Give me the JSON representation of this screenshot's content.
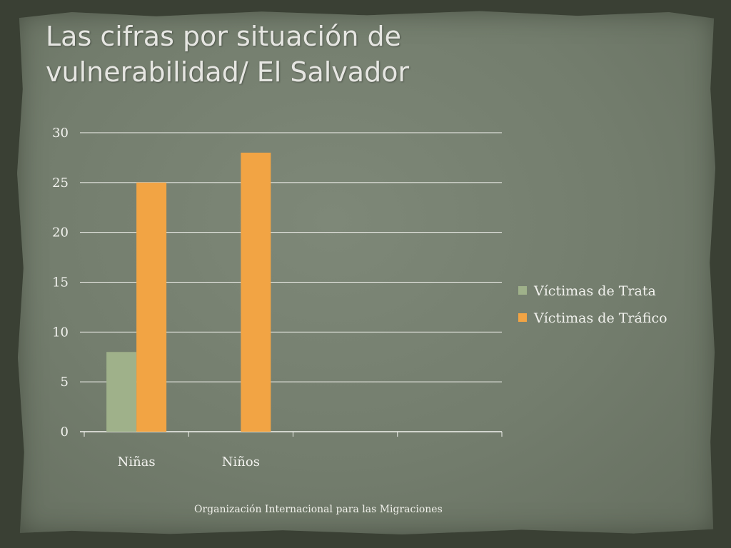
{
  "slide": {
    "title": "Las cifras por situación de vulnerabilidad/ El Salvador",
    "footer": "Organización Internacional para las Migraciones"
  },
  "colors": {
    "background": "#737d6d",
    "gridline": "#f2f2ee",
    "text": "#f2f2ee"
  },
  "chart_data": {
    "type": "bar",
    "title": "",
    "xlabel": "",
    "ylabel": "",
    "categories": [
      "Niñas",
      "Niños",
      "",
      ""
    ],
    "series": [
      {
        "name": "Víctimas de Trata",
        "color": "#9fb18a",
        "values": [
          8,
          0,
          null,
          null
        ]
      },
      {
        "name": "Víctimas de Tráfico",
        "color": "#f2a444",
        "values": [
          25,
          28,
          null,
          null
        ]
      }
    ],
    "ylim": [
      0,
      30
    ],
    "yticks": [
      0,
      5,
      10,
      15,
      20,
      25,
      30
    ],
    "grid": true,
    "legend_position": "right"
  }
}
